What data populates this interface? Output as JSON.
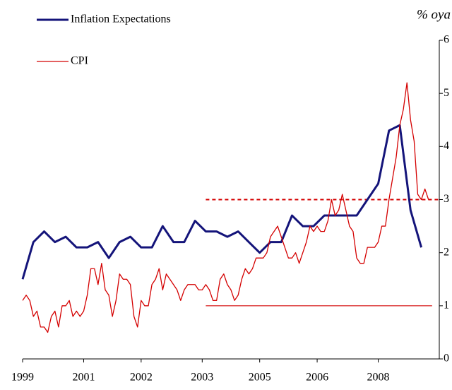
{
  "chart_data": {
    "type": "line",
    "y_label": "% oya",
    "legend": "top-left",
    "xlim": [
      0,
      116
    ],
    "xticks": [
      {
        "value": 0,
        "label": "1999"
      },
      {
        "value": 17,
        "label": "2001"
      },
      {
        "value": 33,
        "label": "2002"
      },
      {
        "value": 50,
        "label": "2003"
      },
      {
        "value": 66,
        "label": "2005"
      },
      {
        "value": 82,
        "label": "2006"
      },
      {
        "value": 99,
        "label": "2008"
      }
    ],
    "ylim": [
      0,
      6
    ],
    "yticks": [
      0,
      1,
      2,
      3,
      4,
      5,
      6
    ],
    "series": [
      {
        "name": "Inflation Expectations",
        "color": "#14147a",
        "width": 3,
        "x": [
          0,
          3,
          6,
          9,
          12,
          15,
          18,
          21,
          24,
          27,
          30,
          33,
          36,
          39,
          42,
          45,
          48,
          51,
          54,
          57,
          60,
          63,
          66,
          69,
          72,
          75,
          78,
          81,
          84,
          87,
          90,
          93,
          96,
          99,
          102,
          105,
          108,
          111
        ],
        "values": [
          1.5,
          2.2,
          2.4,
          2.2,
          2.3,
          2.1,
          2.1,
          2.2,
          1.9,
          2.2,
          2.3,
          2.1,
          2.1,
          2.5,
          2.2,
          2.2,
          2.6,
          2.4,
          2.4,
          2.3,
          2.4,
          2.2,
          2.0,
          2.2,
          2.2,
          2.7,
          2.5,
          2.5,
          2.7,
          2.7,
          2.7,
          2.7,
          3.0,
          3.3,
          4.3,
          4.4,
          2.8,
          2.1
        ]
      },
      {
        "name": "CPI",
        "color": "#d40000",
        "width": 1.3,
        "x": [
          0,
          1,
          2,
          3,
          4,
          5,
          6,
          7,
          8,
          9,
          10,
          11,
          12,
          13,
          14,
          15,
          16,
          17,
          18,
          19,
          20,
          21,
          22,
          23,
          24,
          25,
          26,
          27,
          28,
          29,
          30,
          31,
          32,
          33,
          34,
          35,
          36,
          37,
          38,
          39,
          40,
          41,
          42,
          43,
          44,
          45,
          46,
          47,
          48,
          49,
          50,
          51,
          52,
          53,
          54,
          55,
          56,
          57,
          58,
          59,
          60,
          61,
          62,
          63,
          64,
          65,
          66,
          67,
          68,
          69,
          70,
          71,
          72,
          73,
          74,
          75,
          76,
          77,
          78,
          79,
          80,
          81,
          82,
          83,
          84,
          85,
          86,
          87,
          88,
          89,
          90,
          91,
          92,
          93,
          94,
          95,
          96,
          97,
          98,
          99,
          100,
          101,
          102,
          103,
          104,
          105,
          106,
          107,
          108,
          109,
          110,
          111,
          112,
          113
        ],
        "values": [
          1.1,
          1.2,
          1.1,
          0.8,
          0.9,
          0.6,
          0.6,
          0.5,
          0.8,
          0.9,
          0.6,
          1.0,
          1.0,
          1.1,
          0.8,
          0.9,
          0.8,
          0.9,
          1.2,
          1.7,
          1.7,
          1.4,
          1.8,
          1.3,
          1.2,
          0.8,
          1.1,
          1.6,
          1.5,
          1.5,
          1.4,
          0.8,
          0.6,
          1.1,
          1.0,
          1.0,
          1.4,
          1.5,
          1.7,
          1.3,
          1.6,
          1.5,
          1.4,
          1.3,
          1.1,
          1.3,
          1.4,
          1.4,
          1.4,
          1.3,
          1.3,
          1.4,
          1.3,
          1.1,
          1.1,
          1.5,
          1.6,
          1.4,
          1.3,
          1.1,
          1.2,
          1.5,
          1.7,
          1.6,
          1.7,
          1.9,
          1.9,
          1.9,
          2.0,
          2.3,
          2.4,
          2.5,
          2.3,
          2.1,
          1.9,
          1.9,
          2.0,
          1.8,
          2.0,
          2.2,
          2.5,
          2.4,
          2.5,
          2.4,
          2.4,
          2.6,
          3.0,
          2.7,
          2.8,
          3.1,
          2.8,
          2.5,
          2.4,
          1.9,
          1.8,
          1.8,
          2.1,
          2.1,
          2.1,
          2.2,
          2.5,
          2.5,
          3.0,
          3.4,
          3.8,
          4.4,
          4.7,
          5.2,
          4.5,
          4.1,
          3.1,
          3.0,
          3.2,
          3.0
        ]
      }
    ],
    "reference_lines": [
      {
        "y": 3,
        "x": [
          51,
          116
        ],
        "color": "#d40000",
        "dash": true
      },
      {
        "y": 1,
        "x": [
          51,
          114
        ],
        "color": "#d40000",
        "dash": false
      }
    ]
  }
}
